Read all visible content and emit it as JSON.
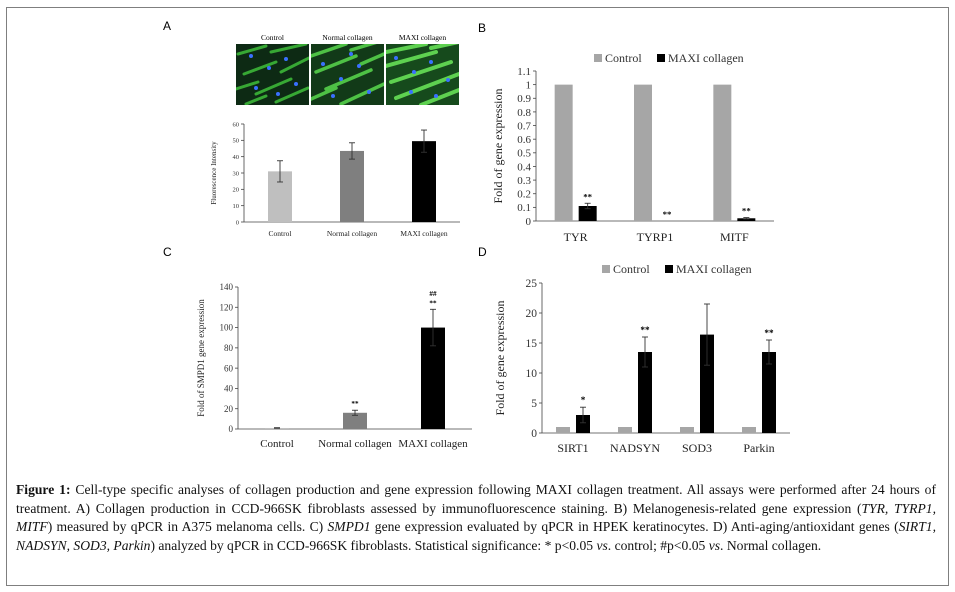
{
  "panels": {
    "a": {
      "letter": "A",
      "image_labels": [
        "Control",
        "Normal collagen",
        "MAXI collagen"
      ]
    },
    "b": {
      "letter": "B"
    },
    "c": {
      "letter": "C"
    },
    "d": {
      "letter": "D"
    }
  },
  "chart_data": [
    {
      "id": "A",
      "type": "bar",
      "categories": [
        "Control",
        "Normal collagen",
        "MAXI collagen"
      ],
      "series": [
        {
          "values": [
            31,
            43.5,
            49.5
          ],
          "errors": [
            6.5,
            5,
            6.8
          ],
          "colors": [
            "#bfbfbf",
            "#7f7f7f",
            "#000000"
          ]
        }
      ],
      "ylabel": "Fluorescence Intensity",
      "ylim": [
        0,
        60
      ],
      "yticks": [
        "0",
        "10",
        "20",
        "30",
        "40",
        "50",
        "60"
      ],
      "grid": false
    },
    {
      "id": "B",
      "type": "bar",
      "categories": [
        "TYR",
        "TYRP1",
        "MITF"
      ],
      "series": [
        {
          "name": "Control",
          "values": [
            1,
            1,
            1
          ],
          "color": "#a6a6a6"
        },
        {
          "name": "MAXI collagen",
          "values": [
            0.11,
            0.0,
            0.02
          ],
          "errors": [
            0.02,
            0,
            0.005
          ],
          "color": "#000000"
        }
      ],
      "annotations": [
        "**",
        "**",
        "**"
      ],
      "ylabel": "Fold of gene expression",
      "ylim": [
        0,
        1.1
      ],
      "yticks": [
        "0",
        "0.1",
        "0.2",
        "0.3",
        "0.4",
        "0.5",
        "0.6",
        "0.7",
        "0.8",
        "0.9",
        "1",
        "1.1"
      ],
      "legend": "top-left"
    },
    {
      "id": "C",
      "type": "bar",
      "categories": [
        "Control",
        "Normal collagen",
        "MAXI collagen"
      ],
      "series": [
        {
          "values": [
            1,
            16,
            100
          ],
          "errors": [
            0.3,
            2.5,
            18
          ],
          "colors": [
            "#bfbfbf",
            "#7f7f7f",
            "#000000"
          ]
        }
      ],
      "annotations": [
        "",
        "**",
        "##\n**"
      ],
      "ylabel": "Fold of SMPD1 gene expression",
      "ylim": [
        0,
        140
      ],
      "yticks": [
        "0",
        "20",
        "40",
        "60",
        "80",
        "100",
        "120",
        "140"
      ]
    },
    {
      "id": "D",
      "type": "bar",
      "categories": [
        "SIRT1",
        "NADSYN",
        "SOD3",
        "Parkin"
      ],
      "series": [
        {
          "name": "Control",
          "values": [
            1,
            1,
            1,
            1
          ],
          "color": "#a6a6a6"
        },
        {
          "name": "MAXI collagen",
          "values": [
            3,
            13.5,
            16.4,
            13.5
          ],
          "errors": [
            1.3,
            2.5,
            5.1,
            2.0
          ],
          "color": "#000000"
        }
      ],
      "annotations": [
        "*",
        "**",
        "",
        "**"
      ],
      "ylabel": "Fold of gene expression",
      "ylim": [
        0,
        25
      ],
      "yticks": [
        "0",
        "5",
        "10",
        "15",
        "20",
        "25"
      ],
      "legend": "top"
    }
  ],
  "caption": {
    "figure_label": "Figure 1:",
    "text_1": " Cell-type specific analyses of collagen production and gene expression following MAXI collagen treatment. All assays were performed after 24 hours of treatment. A) Collagen production in CCD-966SK fibroblasts assessed by immunofluorescence staining. B) Melanogenesis-related gene expression (",
    "genes_b": "TYR, TYRP1, MITF",
    "text_2": ") measured by qPCR in A375 melanoma cells. C) ",
    "gene_c": "SMPD1",
    "text_3": " gene expression evaluated by qPCR in HPEK keratinocytes. D) Anti-aging/antioxidant genes (",
    "genes_d": "SIRT1, NADSYN, SOD3, Parkin",
    "text_4": ") analyzed by qPCR in CCD-966SK fibroblasts. Statistical significance: * p<0.05 ",
    "vs_1": "vs",
    "text_5": ". control; #p<0.05 ",
    "vs_2": "vs",
    "text_6": ". Normal collagen."
  }
}
